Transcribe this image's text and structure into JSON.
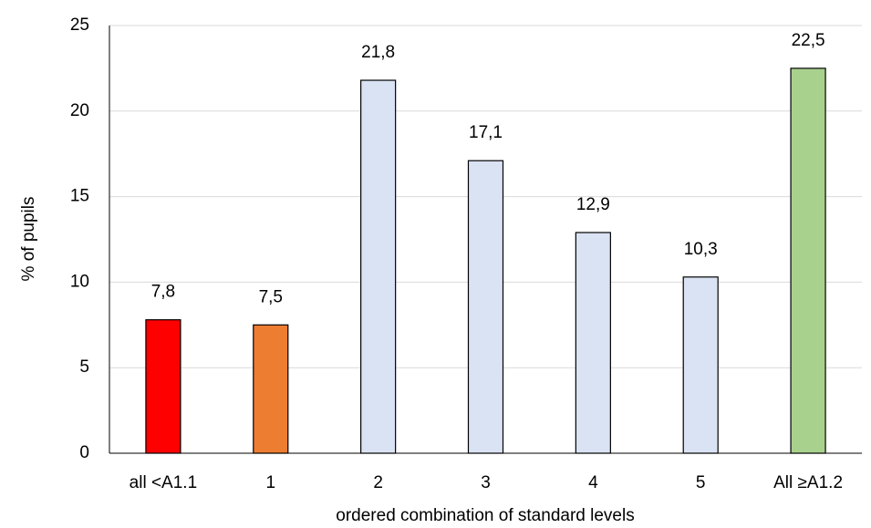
{
  "chart_data": {
    "type": "bar",
    "categories": [
      "all <A1.1",
      "1",
      "2",
      "3",
      "4",
      "5",
      "All ≥A1.2"
    ],
    "values": [
      7.8,
      7.5,
      21.8,
      17.1,
      12.9,
      10.3,
      22.5
    ],
    "value_labels": [
      "7,8",
      "7,5",
      "21,8",
      "17,1",
      "12,9",
      "10,3",
      "22,5"
    ],
    "colors": [
      "#ff0000",
      "#ed7d31",
      "#dae3f3",
      "#dae3f3",
      "#dae3f3",
      "#dae3f3",
      "#a9d18e"
    ],
    "ylabel": "% of pupils",
    "xlabel": "ordered combination of standard levels",
    "ylim": [
      0,
      25
    ],
    "yticks": [
      0,
      5,
      10,
      15,
      20,
      25
    ],
    "grid": true
  }
}
